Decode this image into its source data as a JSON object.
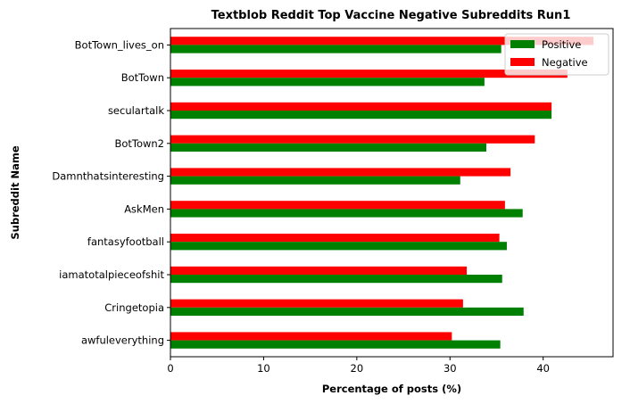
{
  "chart_data": {
    "type": "bar",
    "orientation": "horizontal",
    "title": "Textblob Reddit Top Vaccine Negative Subreddits Run1",
    "xlabel": "Percentage of posts (%)",
    "ylabel": "Subreddit Name",
    "xlim": [
      0,
      47.5
    ],
    "xticks": [
      "0",
      "10",
      "20",
      "30",
      "40"
    ],
    "categories": [
      "BotTown_lives_on",
      "BotTown",
      "seculartalk",
      "BotTown2",
      "Damnthatsinteresting",
      "AskMen",
      "fantasyfootball",
      "iamatotalpieceofshit",
      "Cringetopia",
      "awfuleverything"
    ],
    "series": [
      {
        "name": "Positive",
        "color": "#008000",
        "values": [
          35.5,
          33.7,
          40.9,
          33.9,
          31.1,
          37.8,
          36.1,
          35.6,
          37.9,
          35.4
        ]
      },
      {
        "name": "Negative",
        "color": "#ff0000",
        "values": [
          45.4,
          42.6,
          40.9,
          39.1,
          36.5,
          35.9,
          35.3,
          31.8,
          31.4,
          30.2
        ]
      }
    ],
    "legend_position": "top-right",
    "grid": false
  }
}
